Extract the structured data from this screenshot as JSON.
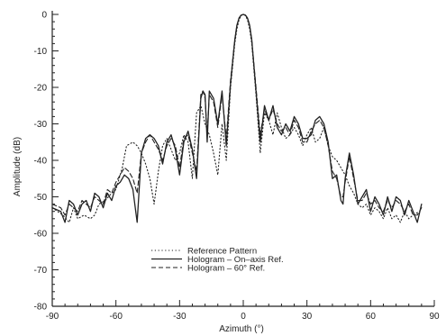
{
  "chart_data": {
    "type": "line",
    "title": "",
    "xlabel": "Azimuth (°)",
    "ylabel": "Amplitude (dB)",
    "xlim": [
      -90,
      90
    ],
    "ylim": [
      -80,
      0
    ],
    "xticks": [
      -90,
      -60,
      -30,
      0,
      30,
      60,
      90
    ],
    "yticks": [
      0,
      -10,
      -20,
      -30,
      -40,
      -50,
      -60,
      -70,
      -80
    ],
    "xtick_labels": [
      "-90",
      "-60",
      "-30",
      "0",
      "30",
      "60",
      "90"
    ],
    "ytick_labels": [
      "0",
      "-10",
      "-20",
      "-30",
      "-40",
      "-50",
      "-60",
      "-70",
      "-80"
    ],
    "grid": false,
    "legend_position": "lower-center",
    "series": [
      {
        "name": "Reference Pattern",
        "style": "dotted",
        "x": [
          -90,
          -85,
          -82,
          -80,
          -78,
          -75,
          -72,
          -70,
          -68,
          -65,
          -62,
          -60,
          -57,
          -55,
          -52,
          -50,
          -48,
          -46,
          -44,
          -42,
          -40,
          -38,
          -36,
          -34,
          -32,
          -30,
          -28,
          -26,
          -24,
          -22,
          -20,
          -18,
          -16,
          -14,
          -12,
          -10,
          -8,
          -6,
          -4,
          -3,
          -2,
          -1,
          0,
          1,
          2,
          3,
          4,
          6,
          8,
          10,
          12,
          14,
          16,
          18,
          20,
          22,
          24,
          26,
          28,
          30,
          32,
          34,
          36,
          38,
          40,
          42,
          44,
          46,
          48,
          50,
          52,
          54,
          56,
          58,
          60,
          62,
          64,
          66,
          68,
          70,
          72,
          74,
          76,
          78,
          80,
          83
        ],
        "y": [
          -53,
          -55,
          -57,
          -53,
          -56,
          -55,
          -56,
          -55,
          -52,
          -51,
          -49,
          -48,
          -42,
          -36,
          -35,
          -36,
          -38,
          -41,
          -45,
          -52,
          -43,
          -36,
          -34,
          -37,
          -40,
          -38,
          -33,
          -35,
          -45,
          -27,
          -25,
          -30,
          -33,
          -38,
          -44,
          -30,
          -40,
          -20,
          -8,
          -4,
          -1.5,
          -0.3,
          0,
          -0.3,
          -1.5,
          -4,
          -8,
          -22,
          -38,
          -27,
          -29,
          -33,
          -27,
          -31,
          -34,
          -33,
          -31,
          -33,
          -36,
          -33,
          -31,
          -35,
          -34,
          -31,
          -36,
          -39,
          -40,
          -42,
          -44,
          -47,
          -49,
          -52,
          -53,
          -52,
          -55,
          -53,
          -54,
          -56,
          -53,
          -56,
          -55,
          -57,
          -54,
          -56,
          -55,
          -54
        ]
      },
      {
        "name": "Hologram - On-axis Ref.",
        "style": "solid",
        "x": [
          -90,
          -86,
          -84,
          -82,
          -80,
          -78,
          -76,
          -74,
          -72,
          -70,
          -68,
          -66,
          -64,
          -62,
          -60,
          -58,
          -56,
          -54,
          -52,
          -50,
          -48,
          -46,
          -44,
          -42,
          -40,
          -38,
          -36,
          -34,
          -32,
          -30,
          -28,
          -26,
          -24,
          -22,
          -20,
          -19,
          -18,
          -17,
          -16,
          -14,
          -12,
          -10,
          -8,
          -6,
          -4,
          -3,
          -2,
          -1,
          0,
          1,
          2,
          3,
          4,
          6,
          8,
          10,
          12,
          14,
          16,
          18,
          20,
          22,
          24,
          26,
          28,
          30,
          32,
          34,
          36,
          38,
          40,
          42,
          44,
          46,
          47,
          48,
          50,
          52,
          54,
          56,
          58,
          60,
          62,
          64,
          66,
          68,
          70,
          72,
          74,
          76,
          78,
          80,
          82,
          84
        ],
        "y": [
          -53,
          -54,
          -57,
          -51,
          -52,
          -55,
          -52,
          -51,
          -54,
          -49,
          -50,
          -53,
          -49,
          -51,
          -47,
          -46,
          -44,
          -45,
          -48,
          -57,
          -38,
          -34,
          -33,
          -34,
          -36,
          -41,
          -35,
          -33,
          -37,
          -44,
          -35,
          -32,
          -37,
          -45,
          -23,
          -21,
          -22,
          -35,
          -21,
          -23,
          -30,
          -21,
          -36,
          -19,
          -7,
          -3,
          -1,
          -0.2,
          0,
          -0.2,
          -1,
          -3,
          -7,
          -21,
          -35,
          -25,
          -29,
          -25,
          -31,
          -33,
          -30,
          -32,
          -28,
          -30,
          -34,
          -34,
          -33,
          -29,
          -28,
          -30,
          -35,
          -45,
          -44,
          -51,
          -52,
          -45,
          -38,
          -44,
          -52,
          -50,
          -48,
          -54,
          -50,
          -52,
          -55,
          -50,
          -54,
          -50,
          -51,
          -55,
          -51,
          -54,
          -57,
          -52
        ]
      },
      {
        "name": "Hologram - 60° Ref.",
        "style": "dashed",
        "x": [
          -90,
          -86,
          -84,
          -82,
          -80,
          -78,
          -76,
          -74,
          -72,
          -70,
          -68,
          -66,
          -64,
          -62,
          -60,
          -58,
          -56,
          -54,
          -52,
          -50,
          -48,
          -46,
          -44,
          -42,
          -40,
          -38,
          -36,
          -34,
          -32,
          -30,
          -28,
          -26,
          -24,
          -22,
          -20,
          -19,
          -18,
          -17,
          -16,
          -14,
          -12,
          -10,
          -8,
          -6,
          -4,
          -3,
          -2,
          -1,
          0,
          1,
          2,
          3,
          4,
          6,
          8,
          10,
          12,
          14,
          16,
          18,
          20,
          22,
          24,
          26,
          28,
          30,
          32,
          34,
          36,
          38,
          40,
          42,
          44,
          46,
          47,
          48,
          50,
          52,
          54,
          56,
          58,
          60,
          62,
          64,
          66,
          68,
          70,
          72,
          74,
          76,
          78,
          80,
          82,
          84
        ],
        "y": [
          -52,
          -53,
          -55,
          -52,
          -53,
          -54,
          -51,
          -52,
          -53,
          -50,
          -51,
          -52,
          -48,
          -49,
          -46,
          -44,
          -42,
          -43,
          -45,
          -49,
          -38,
          -35,
          -33,
          -35,
          -37,
          -40,
          -36,
          -34,
          -36,
          -42,
          -34,
          -33,
          -38,
          -43,
          -22,
          -21,
          -23,
          -33,
          -22,
          -24,
          -31,
          -22,
          -34,
          -18,
          -7,
          -3,
          -1,
          -0.2,
          0,
          -0.2,
          -1,
          -3,
          -7,
          -20,
          -33,
          -26,
          -29,
          -26,
          -30,
          -32,
          -31,
          -33,
          -29,
          -31,
          -35,
          -35,
          -32,
          -30,
          -29,
          -31,
          -36,
          -43,
          -45,
          -50,
          -50,
          -46,
          -39,
          -45,
          -51,
          -51,
          -49,
          -52,
          -51,
          -53,
          -54,
          -51,
          -53,
          -51,
          -52,
          -54,
          -52,
          -55,
          -55,
          -53
        ]
      }
    ]
  },
  "legend": {
    "items": [
      {
        "label": "Reference Pattern",
        "style": "dotted"
      },
      {
        "label": "Hologram  –  On–axis Ref.",
        "style": "solid"
      },
      {
        "label": "Hologram  –  60° Ref.",
        "style": "dashed"
      }
    ]
  },
  "colors": {
    "ink": "#222222",
    "background": "#ffffff"
  }
}
